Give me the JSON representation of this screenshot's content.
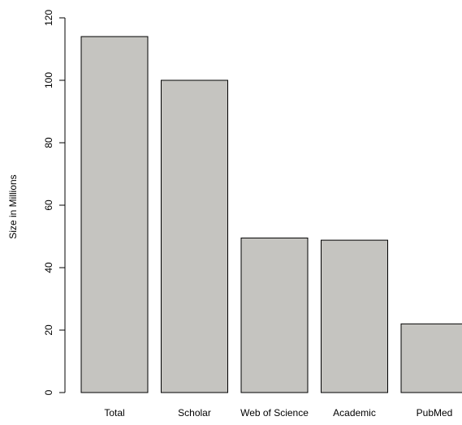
{
  "chart_data": {
    "type": "bar",
    "categories": [
      "Total",
      "Scholar",
      "Web of Science",
      "Academic",
      "PubMed"
    ],
    "values": [
      114,
      100,
      49.5,
      48.8,
      22
    ],
    "title": "",
    "xlabel": "",
    "ylabel": "Size in Millions",
    "ylim": [
      0,
      120
    ],
    "yticks": [
      0,
      20,
      40,
      60,
      80,
      100,
      120
    ],
    "bar_color": "#c5c4c0",
    "bar_edge_color": "#000000",
    "grid": false,
    "legend": "none"
  }
}
